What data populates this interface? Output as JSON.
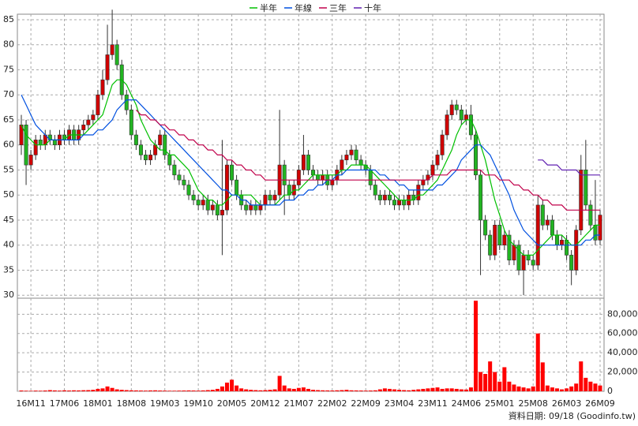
{
  "chart_data": [
    {
      "type": "candlestick",
      "categories": [
        null,
        null,
        "16M11",
        null,
        null,
        null,
        null,
        null,
        null,
        "17M06",
        null,
        null,
        null,
        null,
        null,
        null,
        "18M01",
        null,
        null,
        null,
        null,
        null,
        null,
        "18M08",
        null,
        null,
        null,
        null,
        null,
        null,
        "19M03",
        null,
        null,
        null,
        null,
        null,
        null,
        "19M10",
        null,
        null,
        null,
        null,
        null,
        null,
        "20M05",
        null,
        null,
        null,
        null,
        null,
        null,
        "20M12",
        null,
        null,
        null,
        null,
        null,
        null,
        "21M07",
        null,
        null,
        null,
        null,
        null,
        null,
        "22M02",
        null,
        null,
        null,
        null,
        null,
        null,
        "22M09",
        null,
        null,
        null,
        null,
        null,
        null,
        "23M04",
        null,
        null,
        null,
        null,
        null,
        null,
        "23M11",
        null,
        null,
        null,
        null,
        null,
        null,
        "24M06",
        null,
        null,
        null,
        null,
        null,
        null,
        "25M01",
        null,
        null,
        null,
        null,
        null,
        null,
        "25M08",
        null,
        null,
        null,
        null,
        null,
        null,
        "26M03",
        null,
        null,
        null,
        null,
        null,
        null,
        "26M09"
      ],
      "open": [
        60,
        64,
        56,
        58,
        61,
        60,
        62,
        61,
        60,
        62,
        61,
        63,
        61,
        63,
        64,
        65,
        66,
        70,
        73,
        78,
        80,
        76,
        70,
        67,
        62,
        60,
        58,
        57,
        58,
        60,
        62,
        58,
        56,
        54,
        53,
        52,
        50,
        49,
        48,
        49,
        47,
        48,
        46,
        47,
        56,
        53,
        50,
        48,
        47,
        48,
        47,
        48,
        50,
        49,
        50,
        56,
        52,
        50,
        52,
        55,
        58,
        55,
        54,
        53,
        54,
        52,
        53,
        55,
        57,
        58,
        59,
        57,
        56,
        55,
        52,
        50,
        49,
        50,
        49,
        48,
        49,
        48,
        50,
        49,
        52,
        53,
        54,
        56,
        58,
        62,
        66,
        68,
        67,
        65,
        66,
        62,
        54,
        45,
        42,
        38,
        44,
        40,
        42,
        37,
        40,
        35,
        38,
        37,
        36,
        48,
        44,
        45,
        42,
        40,
        41,
        38,
        35,
        43,
        55,
        48,
        44,
        41
      ],
      "high": [
        66,
        65,
        59,
        62,
        62,
        63,
        63,
        62,
        63,
        63,
        64,
        64,
        64,
        65,
        66,
        67,
        71,
        75,
        84,
        87,
        81,
        77,
        71,
        68,
        63,
        61,
        59,
        59,
        61,
        63,
        63,
        59,
        57,
        55,
        54,
        53,
        51,
        50,
        50,
        50,
        49,
        49,
        61,
        57,
        57,
        54,
        51,
        49,
        49,
        49,
        49,
        51,
        51,
        51,
        67,
        57,
        53,
        53,
        56,
        62,
        59,
        56,
        55,
        55,
        55,
        54,
        56,
        58,
        59,
        60,
        60,
        58,
        57,
        56,
        53,
        51,
        51,
        51,
        50,
        50,
        50,
        51,
        51,
        53,
        54,
        55,
        57,
        59,
        63,
        67,
        69,
        69,
        68,
        67,
        68,
        63,
        55,
        46,
        43,
        45,
        45,
        43,
        43,
        41,
        41,
        39,
        39,
        38,
        50,
        49,
        46,
        46,
        43,
        42,
        42,
        39,
        44,
        58,
        61,
        49,
        53,
        47
      ],
      "low": [
        58,
        52,
        55,
        57,
        59,
        59,
        60,
        59,
        59,
        60,
        60,
        60,
        60,
        62,
        63,
        64,
        65,
        69,
        72,
        77,
        75,
        69,
        66,
        61,
        59,
        57,
        56,
        56,
        57,
        59,
        57,
        55,
        53,
        52,
        51,
        49,
        48,
        47,
        47,
        46,
        46,
        45,
        38,
        46,
        52,
        49,
        47,
        46,
        46,
        46,
        46,
        47,
        48,
        48,
        49,
        46,
        49,
        49,
        51,
        54,
        54,
        53,
        52,
        52,
        51,
        51,
        52,
        54,
        56,
        57,
        56,
        55,
        54,
        51,
        49,
        48,
        48,
        48,
        47,
        47,
        47,
        47,
        48,
        48,
        51,
        52,
        53,
        55,
        57,
        61,
        65,
        66,
        64,
        64,
        61,
        53,
        34,
        41,
        37,
        37,
        39,
        39,
        36,
        36,
        34,
        30,
        36,
        35,
        35,
        43,
        43,
        41,
        39,
        39,
        37,
        32,
        34,
        42,
        47,
        43,
        40,
        40
      ],
      "close": [
        64,
        56,
        58,
        61,
        60,
        62,
        61,
        60,
        62,
        61,
        63,
        61,
        63,
        64,
        65,
        66,
        70,
        73,
        78,
        80,
        76,
        70,
        67,
        62,
        60,
        58,
        57,
        58,
        60,
        62,
        58,
        56,
        54,
        53,
        52,
        50,
        49,
        48,
        49,
        47,
        48,
        46,
        47,
        56,
        53,
        50,
        48,
        47,
        48,
        47,
        48,
        50,
        49,
        50,
        56,
        52,
        50,
        52,
        55,
        58,
        55,
        54,
        53,
        54,
        52,
        53,
        55,
        57,
        58,
        59,
        57,
        56,
        55,
        52,
        50,
        49,
        50,
        49,
        48,
        49,
        48,
        50,
        49,
        52,
        53,
        54,
        56,
        58,
        62,
        66,
        68,
        67,
        65,
        66,
        62,
        54,
        45,
        42,
        38,
        44,
        40,
        42,
        37,
        40,
        35,
        38,
        37,
        36,
        48,
        44,
        45,
        42,
        40,
        41,
        38,
        35,
        43,
        55,
        48,
        44,
        41,
        46
      ],
      "up_color": "#d00000",
      "down_color": "#22b422",
      "series": [
        {
          "name": "半年",
          "color": "#00c000",
          "values": [
            64,
            62,
            61,
            60,
            60,
            60,
            61,
            61,
            61,
            61,
            62,
            62,
            62,
            62,
            63,
            64,
            65,
            66,
            69,
            72,
            73,
            73,
            72,
            70,
            68,
            65,
            63,
            61,
            60,
            59,
            59,
            58,
            58,
            57,
            56,
            55,
            53,
            51,
            50,
            49,
            49,
            48,
            48,
            49,
            50,
            50,
            50,
            50,
            50,
            49,
            48,
            48,
            48,
            48,
            49,
            50,
            50,
            51,
            51,
            52,
            53,
            54,
            54,
            54,
            54,
            54,
            54,
            55,
            55,
            56,
            56,
            56,
            56,
            55,
            54,
            53,
            52,
            51,
            50,
            49,
            49,
            49,
            49,
            50,
            50,
            51,
            52,
            53,
            55,
            57,
            59,
            62,
            64,
            65,
            65,
            63,
            60,
            57,
            53,
            49,
            46,
            43,
            41,
            40,
            39,
            38,
            38,
            38,
            39,
            40,
            41,
            42,
            42,
            42,
            41,
            40,
            40,
            41,
            42,
            43,
            44,
            44
          ]
        },
        {
          "name": "年線",
          "color": "#0050e0",
          "values": [
            70,
            68,
            66,
            64,
            63,
            62,
            61,
            61,
            61,
            61,
            61,
            61,
            61,
            62,
            62,
            62,
            63,
            63,
            64,
            65,
            67,
            68,
            69,
            69,
            69,
            68,
            67,
            66,
            65,
            64,
            63,
            62,
            61,
            60,
            59,
            58,
            57,
            56,
            55,
            54,
            53,
            52,
            51,
            51,
            50,
            50,
            49,
            49,
            48,
            48,
            48,
            48,
            48,
            48,
            48,
            49,
            49,
            49,
            50,
            50,
            51,
            51,
            52,
            52,
            53,
            53,
            54,
            54,
            55,
            55,
            55,
            55,
            55,
            55,
            55,
            54,
            54,
            53,
            53,
            52,
            52,
            51,
            51,
            51,
            51,
            51,
            51,
            52,
            52,
            53,
            54,
            55,
            57,
            58,
            59,
            60,
            60,
            59,
            58,
            56,
            54,
            52,
            50,
            47,
            45,
            43,
            42,
            41,
            40,
            40,
            40,
            40,
            40,
            40,
            40,
            40,
            40,
            40,
            41,
            41,
            42,
            42
          ]
        },
        {
          "name": "三年",
          "color": "#c0004a",
          "values": [
            null,
            null,
            null,
            null,
            null,
            null,
            null,
            null,
            null,
            null,
            null,
            null,
            null,
            null,
            null,
            null,
            null,
            null,
            null,
            null,
            null,
            null,
            null,
            null,
            67,
            66,
            66,
            65,
            65,
            64,
            64,
            63,
            63,
            62,
            62,
            61,
            61,
            60,
            60,
            59,
            59,
            58,
            58,
            57,
            57,
            56,
            56,
            55,
            55,
            54,
            54,
            53,
            53,
            53,
            53,
            53,
            53,
            53,
            53,
            53,
            53,
            53,
            53,
            53,
            53,
            53,
            53,
            53,
            53,
            53,
            53,
            53,
            53,
            53,
            53,
            53,
            53,
            53,
            53,
            53,
            53,
            53,
            53,
            53,
            53,
            53,
            54,
            54,
            54,
            54,
            55,
            55,
            55,
            55,
            55,
            55,
            55,
            54,
            54,
            54,
            53,
            53,
            53,
            52,
            52,
            51,
            51,
            50,
            50,
            49,
            49,
            48,
            48,
            48,
            47,
            47,
            47,
            47,
            47,
            47,
            47,
            47
          ]
        },
        {
          "name": "十年",
          "color": "#6020b0",
          "values": [
            null,
            null,
            null,
            null,
            null,
            null,
            null,
            null,
            null,
            null,
            null,
            null,
            null,
            null,
            null,
            null,
            null,
            null,
            null,
            null,
            null,
            null,
            null,
            null,
            null,
            null,
            null,
            null,
            null,
            null,
            null,
            null,
            null,
            null,
            null,
            null,
            null,
            null,
            null,
            null,
            null,
            null,
            null,
            null,
            null,
            null,
            null,
            null,
            null,
            null,
            null,
            null,
            null,
            null,
            null,
            null,
            null,
            null,
            null,
            null,
            null,
            null,
            null,
            null,
            null,
            null,
            null,
            null,
            null,
            null,
            null,
            null,
            null,
            null,
            null,
            null,
            null,
            null,
            null,
            null,
            null,
            null,
            null,
            null,
            null,
            null,
            null,
            null,
            null,
            null,
            null,
            null,
            null,
            null,
            null,
            null,
            null,
            null,
            null,
            null,
            null,
            null,
            null,
            null,
            null,
            null,
            null,
            null,
            57,
            57,
            56,
            56,
            56,
            55,
            55,
            55,
            55,
            54,
            54,
            54,
            54,
            54
          ]
        }
      ],
      "ylim": [
        29.4,
        86.1
      ],
      "yticks": [
        30,
        35,
        40,
        45,
        50,
        55,
        60,
        65,
        70,
        75,
        80,
        85
      ],
      "grid": true
    },
    {
      "type": "bar",
      "color": "#ff0000",
      "values": [
        800,
        600,
        500,
        700,
        600,
        800,
        1200,
        900,
        700,
        1000,
        800,
        1000,
        900,
        1100,
        1200,
        1500,
        2500,
        3000,
        5000,
        3500,
        2000,
        1500,
        1200,
        1000,
        900,
        800,
        700,
        900,
        1000,
        800,
        700,
        600,
        600,
        700,
        800,
        900,
        800,
        700,
        900,
        1200,
        1500,
        2500,
        5000,
        9000,
        12000,
        6000,
        3000,
        2000,
        1500,
        1200,
        1000,
        1200,
        1500,
        2000,
        16000,
        6000,
        3000,
        2500,
        3500,
        4000,
        2500,
        1500,
        1200,
        1000,
        900,
        800,
        1000,
        1200,
        1500,
        1000,
        900,
        800,
        700,
        800,
        1000,
        2000,
        3000,
        2500,
        2000,
        1500,
        1200,
        1000,
        1500,
        2000,
        2500,
        3000,
        3500,
        4000,
        2500,
        3000,
        3000,
        2500,
        2000,
        1800,
        4000,
        94000,
        20000,
        18000,
        31000,
        20000,
        10000,
        25000,
        10000,
        7000,
        5000,
        4000,
        3000,
        5000,
        60000,
        30000,
        6000,
        4000,
        3000,
        2000,
        3000,
        5000,
        8000,
        31000,
        14000,
        10000,
        8000,
        6000
      ],
      "ylim": [
        0,
        95000
      ],
      "yticks": [
        0,
        {
          "value": 20000,
          "label": "20,000"
        },
        {
          "value": 40000,
          "label": "40,000"
        },
        {
          "value": 60000,
          "label": "60,000"
        },
        {
          "value": 80000,
          "label": "80,000"
        }
      ],
      "grid": true
    }
  ],
  "footer": "資料日期: 09/18 (Goodinfo.tw)"
}
